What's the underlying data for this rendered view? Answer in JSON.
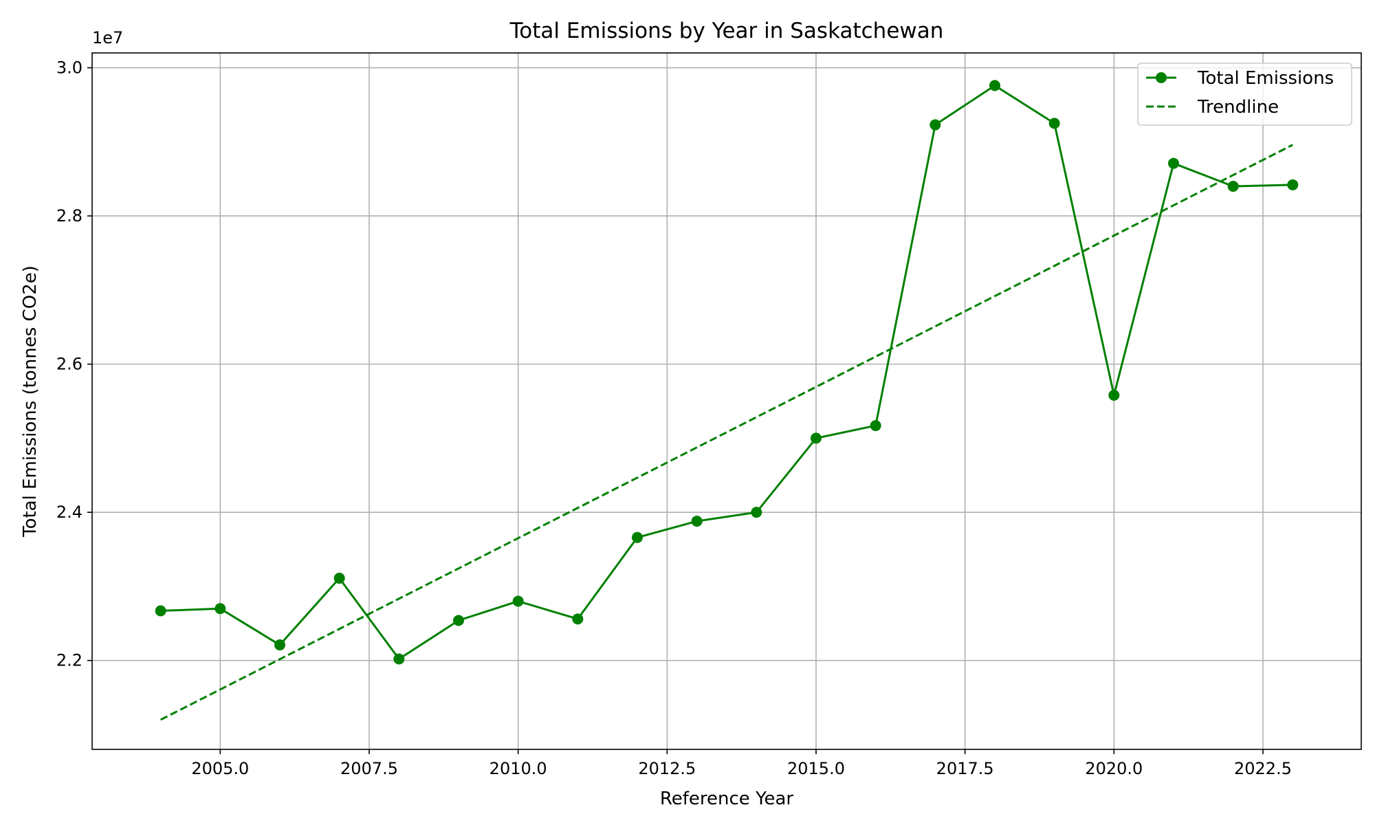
{
  "chart_data": {
    "type": "line",
    "title": "Total Emissions by Year in Saskatchewan",
    "xlabel": "Reference Year",
    "ylabel": "Total Emissions (tonnes CO2e)",
    "y_offset_label": "1e7",
    "y_scale_factor": 10000000,
    "xlim": [
      2002.85,
      2024.15
    ],
    "ylim": [
      20800000,
      30200000
    ],
    "xticks": [
      2005.0,
      2007.5,
      2010.0,
      2012.5,
      2015.0,
      2017.5,
      2020.0,
      2022.5
    ],
    "xtick_labels": [
      "2005.0",
      "2007.5",
      "2010.0",
      "2012.5",
      "2015.0",
      "2017.5",
      "2020.0",
      "2022.5"
    ],
    "yticks": [
      22000000,
      24000000,
      26000000,
      28000000,
      30000000
    ],
    "ytick_labels": [
      "2.2",
      "2.4",
      "2.6",
      "2.8",
      "3.0"
    ],
    "grid": true,
    "legend_position": "top-right",
    "series": [
      {
        "name": "Total Emissions",
        "style": "solid-with-markers",
        "color": "#008000",
        "x": [
          2004,
          2005,
          2006,
          2007,
          2008,
          2009,
          2010,
          2011,
          2012,
          2013,
          2014,
          2015,
          2016,
          2017,
          2018,
          2019,
          2020,
          2021,
          2022,
          2023
        ],
        "y": [
          22670000,
          22700000,
          22210000,
          23110000,
          22020000,
          22540000,
          22800000,
          22560000,
          23660000,
          23880000,
          24000000,
          25000000,
          25170000,
          29230000,
          29760000,
          29250000,
          25580000,
          28710000,
          28400000,
          28420000
        ]
      },
      {
        "name": "Trendline",
        "style": "dashed",
        "color": "#008000",
        "x": [
          2004,
          2023
        ],
        "y": [
          21200000,
          28960000
        ]
      }
    ]
  }
}
